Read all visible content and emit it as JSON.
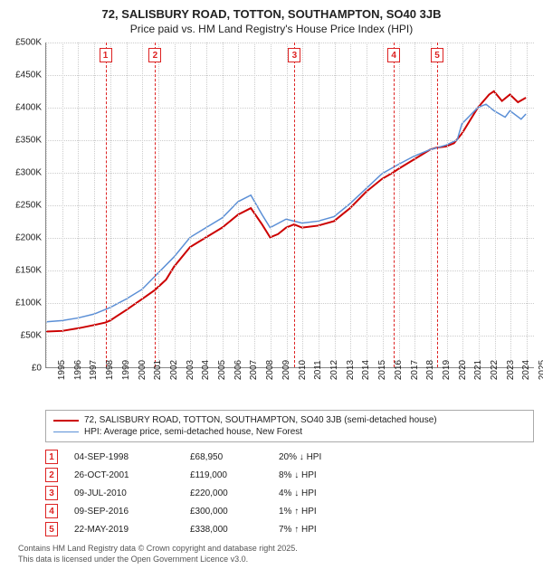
{
  "title": "72, SALISBURY ROAD, TOTTON, SOUTHAMPTON, SO40 3JB",
  "subtitle": "Price paid vs. HM Land Registry's House Price Index (HPI)",
  "chart": {
    "type": "line",
    "xlim": [
      1995,
      2025.5
    ],
    "ylim": [
      0,
      500000
    ],
    "ytick_step": 50000,
    "yticks": [
      "£0",
      "£50K",
      "£100K",
      "£150K",
      "£200K",
      "£250K",
      "£300K",
      "£350K",
      "£400K",
      "£450K",
      "£500K"
    ],
    "xticks": [
      1995,
      1996,
      1997,
      1998,
      1999,
      2000,
      2001,
      2002,
      2003,
      2004,
      2005,
      2006,
      2007,
      2008,
      2009,
      2010,
      2011,
      2012,
      2013,
      2014,
      2015,
      2016,
      2017,
      2018,
      2019,
      2020,
      2021,
      2022,
      2023,
      2024,
      2025
    ],
    "grid_color": "#cccccc",
    "background_color": "#ffffff",
    "series": [
      {
        "name": "72, SALISBURY ROAD, TOTTON, SOUTHAMPTON, SO40 3JB (semi-detached house)",
        "color": "#cc0000",
        "width": 2,
        "points": [
          [
            1995,
            55000
          ],
          [
            1996,
            56000
          ],
          [
            1997,
            60000
          ],
          [
            1998,
            65000
          ],
          [
            1998.7,
            68950
          ],
          [
            1999,
            72000
          ],
          [
            2000,
            88000
          ],
          [
            2001,
            105000
          ],
          [
            2001.8,
            119000
          ],
          [
            2002.5,
            135000
          ],
          [
            2003,
            155000
          ],
          [
            2004,
            185000
          ],
          [
            2005,
            200000
          ],
          [
            2006,
            215000
          ],
          [
            2007,
            235000
          ],
          [
            2007.8,
            245000
          ],
          [
            2008.5,
            220000
          ],
          [
            2009,
            200000
          ],
          [
            2009.5,
            205000
          ],
          [
            2010,
            215000
          ],
          [
            2010.5,
            220000
          ],
          [
            2011,
            215000
          ],
          [
            2012,
            218000
          ],
          [
            2013,
            225000
          ],
          [
            2014,
            245000
          ],
          [
            2015,
            270000
          ],
          [
            2016,
            290000
          ],
          [
            2016.7,
            300000
          ],
          [
            2017,
            305000
          ],
          [
            2018,
            320000
          ],
          [
            2019,
            335000
          ],
          [
            2019.4,
            338000
          ],
          [
            2020,
            340000
          ],
          [
            2020.5,
            345000
          ],
          [
            2021,
            360000
          ],
          [
            2022,
            400000
          ],
          [
            2022.7,
            420000
          ],
          [
            2023,
            425000
          ],
          [
            2023.5,
            410000
          ],
          [
            2024,
            420000
          ],
          [
            2024.5,
            408000
          ],
          [
            2025,
            415000
          ]
        ]
      },
      {
        "name": "HPI: Average price, semi-detached house, New Forest",
        "color": "#5b8fd6",
        "width": 1.5,
        "points": [
          [
            1995,
            70000
          ],
          [
            1996,
            72000
          ],
          [
            1997,
            76000
          ],
          [
            1998,
            82000
          ],
          [
            1999,
            92000
          ],
          [
            2000,
            105000
          ],
          [
            2001,
            120000
          ],
          [
            2002,
            145000
          ],
          [
            2003,
            170000
          ],
          [
            2004,
            200000
          ],
          [
            2005,
            215000
          ],
          [
            2006,
            230000
          ],
          [
            2007,
            255000
          ],
          [
            2007.8,
            265000
          ],
          [
            2008.5,
            235000
          ],
          [
            2009,
            215000
          ],
          [
            2010,
            228000
          ],
          [
            2011,
            222000
          ],
          [
            2012,
            225000
          ],
          [
            2013,
            232000
          ],
          [
            2014,
            252000
          ],
          [
            2015,
            275000
          ],
          [
            2016,
            298000
          ],
          [
            2017,
            312000
          ],
          [
            2018,
            325000
          ],
          [
            2019,
            335000
          ],
          [
            2020,
            342000
          ],
          [
            2020.7,
            350000
          ],
          [
            2021,
            375000
          ],
          [
            2022,
            400000
          ],
          [
            2022.5,
            405000
          ],
          [
            2023,
            395000
          ],
          [
            2023.7,
            385000
          ],
          [
            2024,
            395000
          ],
          [
            2024.7,
            382000
          ],
          [
            2025,
            390000
          ]
        ]
      }
    ],
    "markers": [
      {
        "n": "1",
        "x": 1998.7
      },
      {
        "n": "2",
        "x": 2001.8
      },
      {
        "n": "3",
        "x": 2010.5
      },
      {
        "n": "4",
        "x": 2016.7
      },
      {
        "n": "5",
        "x": 2019.4
      }
    ]
  },
  "legend": [
    {
      "color": "#cc0000",
      "width": 2,
      "label": "72, SALISBURY ROAD, TOTTON, SOUTHAMPTON, SO40 3JB (semi-detached house)"
    },
    {
      "color": "#5b8fd6",
      "width": 1.5,
      "label": "HPI: Average price, semi-detached house, New Forest"
    }
  ],
  "table": [
    {
      "n": "1",
      "date": "04-SEP-1998",
      "price": "£68,950",
      "pct": "20% ↓ HPI"
    },
    {
      "n": "2",
      "date": "26-OCT-2001",
      "price": "£119,000",
      "pct": "8% ↓ HPI"
    },
    {
      "n": "3",
      "date": "09-JUL-2010",
      "price": "£220,000",
      "pct": "4% ↓ HPI"
    },
    {
      "n": "4",
      "date": "09-SEP-2016",
      "price": "£300,000",
      "pct": "1% ↑ HPI"
    },
    {
      "n": "5",
      "date": "22-MAY-2019",
      "price": "£338,000",
      "pct": "7% ↑ HPI"
    }
  ],
  "footer1": "Contains HM Land Registry data © Crown copyright and database right 2025.",
  "footer2": "This data is licensed under the Open Government Licence v3.0."
}
